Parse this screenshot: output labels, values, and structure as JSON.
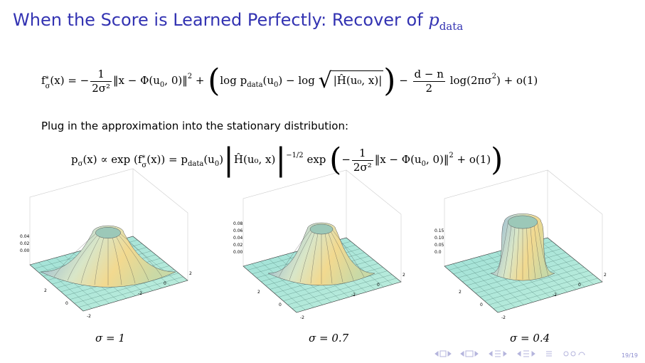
{
  "title": {
    "text": "When the Score is Learned Perfectly: Recover of",
    "math": "p",
    "sub": "data"
  },
  "equations": [
    [
      {
        "t": "f"
      },
      {
        "subsup": [
          "σ",
          "*"
        ]
      },
      {
        "t": "(x) = −"
      },
      {
        "frac": [
          "1",
          "2σ²"
        ]
      },
      {
        "t": "‖x − Φ(u"
      },
      {
        "sub": "0"
      },
      {
        "t": ", 0)‖"
      },
      {
        "sup": "2"
      },
      {
        "t": " + "
      },
      {
        "big": "("
      },
      {
        "t": "log p"
      },
      {
        "sub": "data"
      },
      {
        "t": "(u"
      },
      {
        "sub": "0"
      },
      {
        "t": ") − log "
      },
      {
        "sqrt": "|Ĥ(u₀, x)|"
      },
      {
        "big": ")"
      },
      {
        "t": " − "
      },
      {
        "frac": [
          "d − n",
          "2"
        ]
      },
      {
        "t": " log(2πσ"
      },
      {
        "sup": "2"
      },
      {
        "t": ") + o(1)"
      }
    ],
    [
      {
        "t": "p"
      },
      {
        "sub": "σ"
      },
      {
        "t": "(x) ∝ exp (f"
      },
      {
        "subsup": [
          "σ",
          "*"
        ]
      },
      {
        "t": "(x)) = p"
      },
      {
        "sub": "data"
      },
      {
        "t": "(u"
      },
      {
        "sub": "0"
      },
      {
        "t": ")"
      },
      {
        "big": "|"
      },
      {
        "t": "Ĥ(u₀, x)"
      },
      {
        "big": "|"
      },
      {
        "sup": "−1/2"
      },
      {
        "t": " exp "
      },
      {
        "big": "("
      },
      {
        "t": "−"
      },
      {
        "frac": [
          "1",
          "2σ²"
        ]
      },
      {
        "t": "‖x − Φ(u"
      },
      {
        "sub": "0"
      },
      {
        "t": ", 0)‖"
      },
      {
        "sup": "2"
      },
      {
        "t": " + o(1)"
      },
      {
        "big": ")"
      }
    ]
  ],
  "sentence": "Plug in the approximation into the stationary distribution:",
  "plots": [
    {
      "caption": "σ = 1",
      "zticks": [
        "0.04",
        "0.02",
        "0.00"
      ],
      "xticks": [
        "2",
        "0",
        "-2"
      ],
      "yticks": [
        "2",
        "0",
        "-2"
      ]
    },
    {
      "caption": "σ = 0.7",
      "zticks": [
        "0.08",
        "0.06",
        "0.04",
        "0.02",
        "0.00"
      ],
      "xticks": [
        "2",
        "0",
        "-2"
      ],
      "yticks": [
        "2",
        "0",
        "-2"
      ]
    },
    {
      "caption": "σ = 0.4",
      "zticks": [
        "0.15",
        "0.10",
        "0.05",
        "0.0"
      ],
      "xticks": [
        "2",
        "0",
        "-2"
      ],
      "yticks": [
        "2",
        "0",
        "-2"
      ]
    }
  ],
  "page_number": "19/19"
}
